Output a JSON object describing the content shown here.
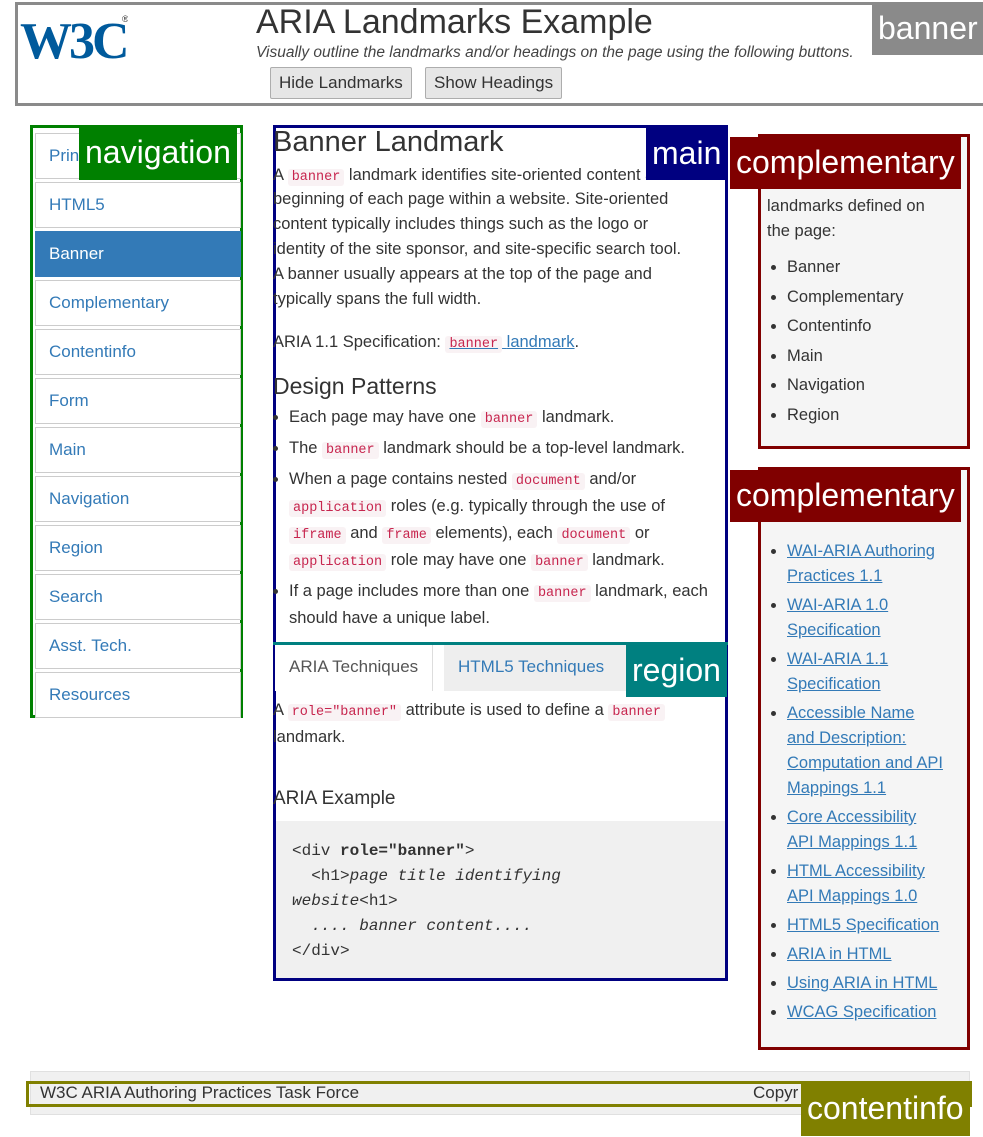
{
  "header": {
    "logo_text": "W3C",
    "title": "ARIA Landmarks Example",
    "subtitle": "Visually outline the landmarks and/or headings on the page using the following buttons.",
    "hide_landmarks_label": "Hide Landmarks",
    "show_headings_label": "Show Headings"
  },
  "landmark_labels": {
    "banner": "banner",
    "navigation": "navigation",
    "main": "main",
    "complementary": "complementary",
    "region": "region",
    "contentinfo": "contentinfo"
  },
  "nav": {
    "items": [
      "Principles",
      "HTML5",
      "Banner",
      "Complementary",
      "Contentinfo",
      "Form",
      "Main",
      "Navigation",
      "Region",
      "Search",
      "Asst. Tech.",
      "Resources"
    ],
    "first_item_visible": "Prin",
    "active": "Banner"
  },
  "main": {
    "heading": "Banner Landmark",
    "p1_a": "A",
    "p1_code": "banner",
    "p1_b": "landmark identifies site-oriented content at the",
    "p1_line2": "beginning of each page within a website. Site-oriented",
    "p1_line3": "content typically includes things such as the logo or",
    "p1_line4": "identity of the site sponsor, and site-specific search tool.",
    "p1_line5": "A banner usually appears at the top of the page and",
    "p1_line6": "typically spans the full width.",
    "spec_prefix": "ARIA 1.1 Specification:",
    "spec_code": "banner",
    "spec_link": "landmark",
    "spec_suffix": ".",
    "design_heading": "Design Patterns",
    "dp1_a": "Each page may have one",
    "dp1_code": "banner",
    "dp1_b": "landmark.",
    "dp2_a": "The",
    "dp2_code": "banner",
    "dp2_b": "landmark should be a top-level landmark.",
    "dp3_a": "When a page contains nested",
    "dp3_c1": "document",
    "dp3_b": "and/or",
    "dp3_c2": "application",
    "dp3_c": "roles (e.g. typically through the use of",
    "dp3_c3": "iframe",
    "dp3_d": "and",
    "dp3_c4": "frame",
    "dp3_e": "elements), each",
    "dp3_c5": "document",
    "dp3_f": "or",
    "dp3_c6": "application",
    "dp3_g": "role may have one",
    "dp3_c7": "banner",
    "dp3_h": "landmark.",
    "dp4_a": "If a page includes more than one",
    "dp4_code": "banner",
    "dp4_b": "landmark,",
    "dp4_line2": "each should have a unique label."
  },
  "tabs": {
    "aria": "ARIA Techniques",
    "html5": "HTML5 Techniques",
    "panel_a": "A",
    "panel_code1": "role=\"banner\"",
    "panel_b": "attribute is used to define a",
    "panel_code2": "banner",
    "panel_line2": "landmark.",
    "example_heading": "ARIA Example",
    "code_l1_a": "<div ",
    "code_l1_b": "role=\"banner\"",
    "code_l1_c": ">",
    "code_l2_a": "  <h1>",
    "code_l2_b": "page title identifying",
    "code_l3_a": "website",
    "code_l3_b": "<h1>",
    "code_l4": "  .... banner content....",
    "code_l5": "</div>"
  },
  "comp1": {
    "intro_line1": "landmarks defined on",
    "intro_line2": "the page:",
    "items": [
      "Banner",
      "Complementary",
      "Contentinfo",
      "Main",
      "Navigation",
      "Region"
    ]
  },
  "comp2": {
    "links": [
      [
        "WAI-ARIA Authoring",
        "Practices 1.1"
      ],
      [
        "WAI-ARIA 1.0",
        "Specification"
      ],
      [
        "WAI-ARIA 1.1",
        "Specification"
      ],
      [
        "Accessible Name",
        "and Description:",
        "Computation and API",
        "Mappings 1.1"
      ],
      [
        "Core Accessibility",
        "API Mappings 1.1"
      ],
      [
        "HTML Accessibility",
        "API Mappings 1.0"
      ],
      [
        "HTML5 Specification"
      ],
      [
        "ARIA in HTML"
      ],
      [
        "Using ARIA in HTML"
      ],
      [
        "WCAG Specification"
      ]
    ]
  },
  "footer": {
    "left": "W3C ARIA Authoring Practices Task Force",
    "right": "Copyr"
  },
  "colors": {
    "banner": "#8a8a8a",
    "navigation": "#008000",
    "main": "#000080",
    "complementary": "#800000",
    "region": "#008080",
    "contentinfo": "#808000",
    "link": "#337ab7"
  }
}
